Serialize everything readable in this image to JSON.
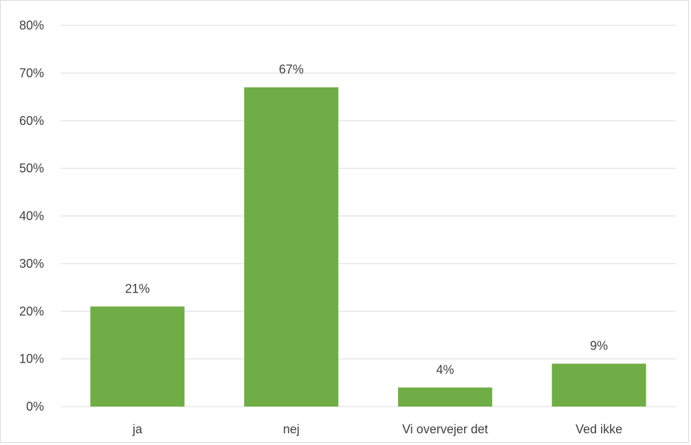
{
  "chart_data": {
    "type": "bar",
    "categories": [
      "ja",
      "nej",
      "Vi overvejer det",
      "Ved ikke"
    ],
    "values": [
      21,
      67,
      4,
      9
    ],
    "data_labels": [
      "21%",
      "67%",
      "4%",
      "9%"
    ],
    "ylim": [
      0,
      80
    ],
    "yticks": [
      0,
      10,
      20,
      30,
      40,
      50,
      60,
      70,
      80
    ],
    "ytick_labels": [
      "0%",
      "10%",
      "20%",
      "30%",
      "40%",
      "50%",
      "60%",
      "70%",
      "80%"
    ],
    "grid": true,
    "bar_color": "#70ad47",
    "grid_color": "#d9d9d9"
  }
}
